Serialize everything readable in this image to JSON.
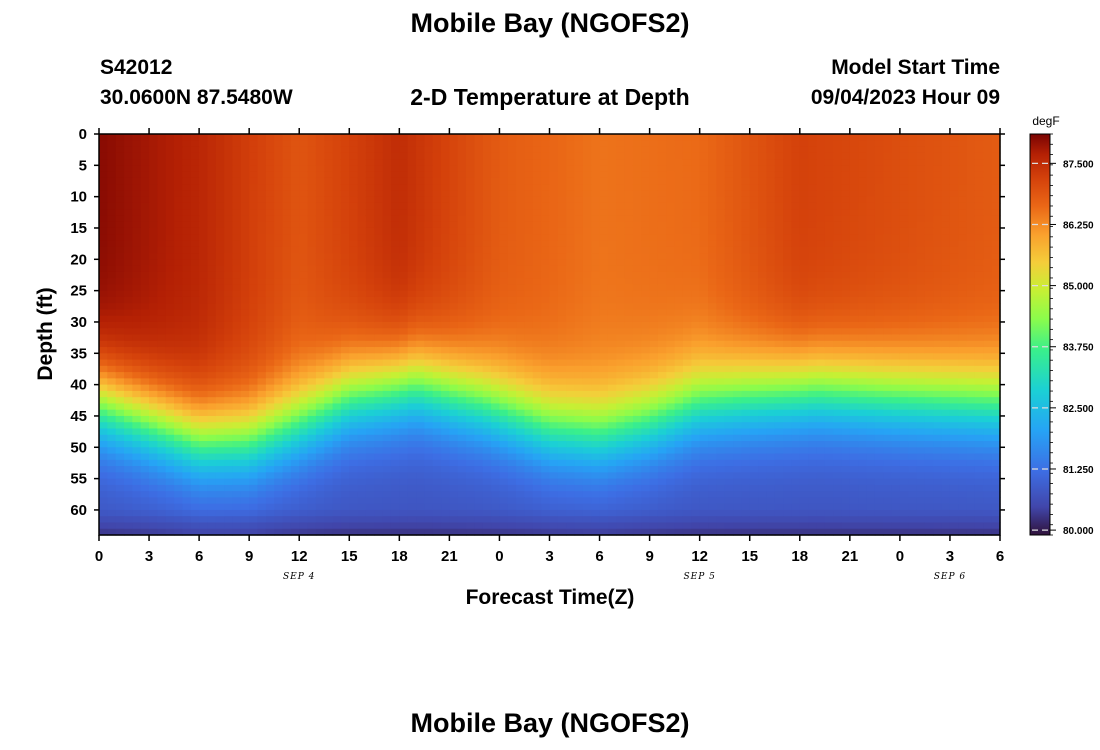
{
  "header": {
    "title": "Mobile Bay (NGOFS2)",
    "station": "S42012",
    "coordinates": "30.0600N  87.5480W",
    "subtitle": "2-D Temperature at Depth",
    "model_start_label": "Model Start Time",
    "model_start_value": "09/04/2023 Hour 09"
  },
  "footer": {
    "title": "Mobile Bay (NGOFS2)"
  },
  "chart_data": {
    "type": "heatmap",
    "xlabel": "Forecast Time(Z)",
    "ylabel": "Depth (ft)",
    "x_range_hours": [
      0,
      54
    ],
    "x_tick_labels": [
      "0",
      "3",
      "6",
      "9",
      "12",
      "15",
      "18",
      "21",
      "0",
      "3",
      "6",
      "9",
      "12",
      "15",
      "18",
      "21",
      "0",
      "3",
      "6"
    ],
    "x_day_labels": [
      {
        "label": "SEP 4",
        "hour": 12
      },
      {
        "label": "SEP 5",
        "hour": 36
      },
      {
        "label": "SEP 6",
        "hour": 51
      }
    ],
    "ylim": [
      0,
      64
    ],
    "y_ticks": [
      0,
      5,
      10,
      15,
      20,
      25,
      30,
      35,
      40,
      45,
      50,
      55,
      60
    ],
    "y_inverted": true,
    "colorbar": {
      "unit": "degF",
      "min": 79.9,
      "max": 88.1,
      "tick_values": [
        80.0,
        81.25,
        82.5,
        83.75,
        85.0,
        86.25,
        87.5
      ],
      "tick_labels": [
        "80.000",
        "81.250",
        "82.500",
        "83.750",
        "85.000",
        "86.250",
        "87.500"
      ]
    },
    "thermocline_depth_ft": [
      {
        "hour": 0,
        "depth": 43
      },
      {
        "hour": 3,
        "depth": 46
      },
      {
        "hour": 6,
        "depth": 49
      },
      {
        "hour": 9,
        "depth": 49
      },
      {
        "hour": 12,
        "depth": 46
      },
      {
        "hour": 15,
        "depth": 42
      },
      {
        "hour": 19,
        "depth": 40
      },
      {
        "hour": 23,
        "depth": 43
      },
      {
        "hour": 27,
        "depth": 47
      },
      {
        "hour": 30,
        "depth": 48
      },
      {
        "hour": 33,
        "depth": 46
      },
      {
        "hour": 36,
        "depth": 43
      },
      {
        "hour": 39,
        "depth": 42
      },
      {
        "hour": 43,
        "depth": 41
      },
      {
        "hour": 48,
        "depth": 42
      },
      {
        "hour": 54,
        "depth": 43
      }
    ],
    "surface_temp_degF": [
      {
        "hour": 0,
        "temp": 88.0
      },
      {
        "hour": 6,
        "temp": 87.6
      },
      {
        "hour": 12,
        "temp": 86.9
      },
      {
        "hour": 18,
        "temp": 87.5
      },
      {
        "hour": 24,
        "temp": 86.8
      },
      {
        "hour": 30,
        "temp": 86.5
      },
      {
        "hour": 36,
        "temp": 86.6
      },
      {
        "hour": 42,
        "temp": 87.2
      },
      {
        "hour": 48,
        "temp": 87.0
      },
      {
        "hour": 54,
        "temp": 86.8
      }
    ],
    "bottom_temp_degF": 80.7
  }
}
